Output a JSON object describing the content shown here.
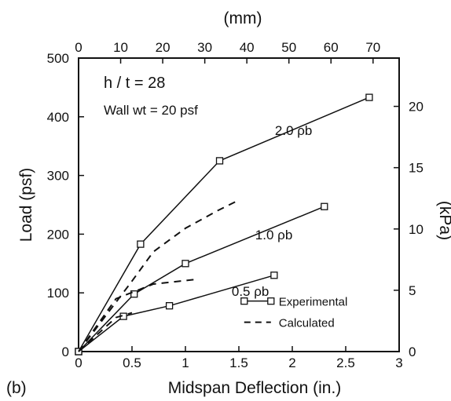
{
  "chart_data": {
    "type": "line",
    "panel_label": "(b)",
    "xlabel": "Midspan Deflection (in.)",
    "ylabel": "Load (psf)",
    "top_xlabel": "(mm)",
    "right_ylabel": "(kPa)",
    "xlim": [
      0,
      3
    ],
    "ylim": [
      0,
      500
    ],
    "top_xlim": [
      0,
      76.2
    ],
    "right_ylim": [
      0,
      23.94
    ],
    "x_ticks": [
      0,
      0.5,
      1,
      1.5,
      2,
      2.5,
      3
    ],
    "x_tick_labels": [
      "0",
      "0.5",
      "1",
      "1.5",
      "2",
      "2.5",
      "3"
    ],
    "y_ticks": [
      0,
      100,
      200,
      300,
      400,
      500
    ],
    "y_tick_labels": [
      "0",
      "100",
      "200",
      "300",
      "400",
      "500"
    ],
    "top_ticks": [
      0,
      10,
      20,
      30,
      40,
      50,
      60,
      70
    ],
    "top_tick_labels": [
      "0",
      "10",
      "20",
      "30",
      "40",
      "50",
      "60",
      "70"
    ],
    "right_ticks": [
      0,
      5,
      10,
      15,
      20
    ],
    "right_tick_labels": [
      "0",
      "5",
      "10",
      "15",
      "20"
    ],
    "grid": false,
    "annotations": [
      "h / t = 28",
      "Wall wt = 20 psf"
    ],
    "legend": {
      "placement": "bottom-right",
      "entries": [
        {
          "label": "Experimental",
          "style": "solid-square"
        },
        {
          "label": "Calculated",
          "style": "dashed"
        }
      ]
    },
    "series": [
      {
        "name": "2.0 ρb",
        "kind": "experimental",
        "x": [
          0,
          0.58,
          1.32,
          2.72
        ],
        "y": [
          0,
          183,
          325,
          433
        ]
      },
      {
        "name": "1.0 ρb",
        "kind": "experimental",
        "x": [
          0,
          0.52,
          1.0,
          2.3
        ],
        "y": [
          0,
          98,
          150,
          247
        ]
      },
      {
        "name": "0.5 ρb",
        "kind": "experimental",
        "x": [
          0,
          0.42,
          0.85,
          1.83
        ],
        "y": [
          0,
          60,
          78,
          130
        ]
      },
      {
        "kind": "calculated",
        "x": [
          0,
          0.5,
          0.7,
          1.0,
          1.3,
          1.5
        ],
        "y": [
          0,
          120,
          170,
          210,
          240,
          258
        ]
      },
      {
        "kind": "calculated",
        "x": [
          0,
          0.35,
          0.7,
          1.1
        ],
        "y": [
          0,
          90,
          115,
          123
        ]
      },
      {
        "kind": "calculated",
        "x": [
          0,
          0.35,
          0.5
        ],
        "y": [
          0,
          58,
          66
        ]
      }
    ]
  }
}
